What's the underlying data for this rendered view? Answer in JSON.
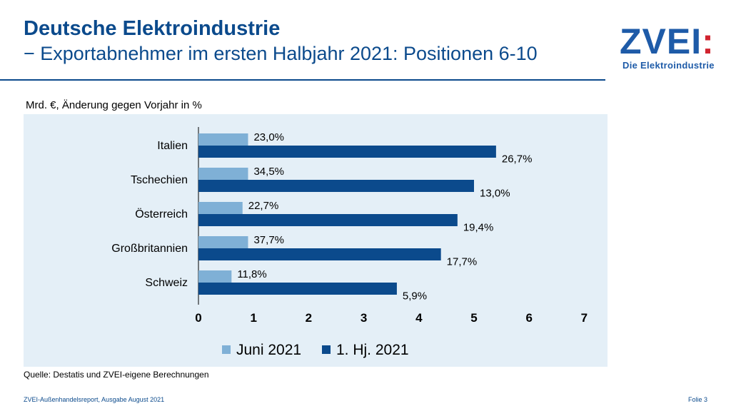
{
  "slide": {
    "title": "Deutsche Elektroindustrie",
    "subtitle": "− Exportabnehmer im ersten Halbjahr 2021: Positionen 6-10",
    "unit_label": "Mrd. €, Änderung gegen Vorjahr in %",
    "source": "Quelle: Destatis und ZVEI-eigene Berechnungen",
    "footer_left": "ZVEI-Außenhandelsreport, Ausgabe August 2021",
    "footer_right": "Folie 3"
  },
  "logo": {
    "word": "ZVEI",
    "colon": ":",
    "tagline": "Die Elektroindustrie",
    "color_main": "#1e5ba8",
    "color_accent": "#d1242f"
  },
  "chart_data": {
    "type": "bar",
    "orientation": "horizontal",
    "categories": [
      "Italien",
      "Tschechien",
      "Österreich",
      "Großbritannien",
      "Schweiz"
    ],
    "series": [
      {
        "name": "Juni 2021",
        "color": "#7fb0d6",
        "values": [
          0.9,
          0.9,
          0.8,
          0.9,
          0.6
        ],
        "labels": [
          "23,0%",
          "34,5%",
          "22,7%",
          "37,7%",
          "11,8%"
        ]
      },
      {
        "name": "1. Hj. 2021",
        "color": "#0b4a8c",
        "values": [
          5.4,
          5.0,
          4.7,
          4.4,
          3.6
        ],
        "labels": [
          "26,7%",
          "13,0%",
          "19,4%",
          "17,7%",
          "5,9%"
        ]
      }
    ],
    "xlim": [
      0,
      7
    ],
    "xticks": [
      "0",
      "1",
      "2",
      "3",
      "4",
      "5",
      "6",
      "7"
    ],
    "grid": false,
    "legend_position": "bottom"
  }
}
